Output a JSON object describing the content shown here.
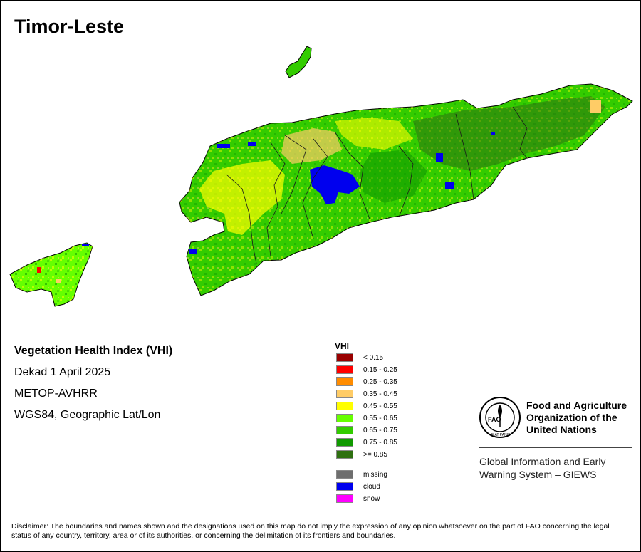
{
  "title": "Timor-Leste",
  "info": {
    "product": "Vegetation Health Index (VHI)",
    "period": "Dekad 1 April 2025",
    "sensor": "METOP-AVHRR",
    "projection": "WGS84, Geographic Lat/Lon"
  },
  "legend": {
    "title": "VHI",
    "classes": [
      {
        "label": "< 0.15",
        "color": "#990000"
      },
      {
        "label": "0.15 - 0.25",
        "color": "#ff0000"
      },
      {
        "label": "0.25 - 0.35",
        "color": "#ff8c00"
      },
      {
        "label": "0.35 - 0.45",
        "color": "#ffcc66"
      },
      {
        "label": "0.45 - 0.55",
        "color": "#ffff00"
      },
      {
        "label": "0.55 - 0.65",
        "color": "#66ff00"
      },
      {
        "label": "0.65 - 0.75",
        "color": "#33cc00"
      },
      {
        "label": "0.75 - 0.85",
        "color": "#109a00"
      },
      {
        "label": ">= 0.85",
        "color": "#2e7010"
      }
    ],
    "special": [
      {
        "label": "missing",
        "color": "#6e6e6e"
      },
      {
        "label": "cloud",
        "color": "#0000ee"
      },
      {
        "label": "snow",
        "color": "#ff00ff"
      }
    ]
  },
  "organization": {
    "name": "Food and Agriculture Organization of the United Nations",
    "logo_letters": "FAO",
    "logo_motto": "FIAT PANIS",
    "program": "Global Information and Early Warning System – GIEWS"
  },
  "disclaimer": "Disclaimer: The boundaries and names shown and the designations used on this map do not imply the expression of any opinion whatsoever on the part of FAO concerning the legal status of any country, territory, area or of its authorities, or concerning the delimitation of its frontiers and boundaries."
}
